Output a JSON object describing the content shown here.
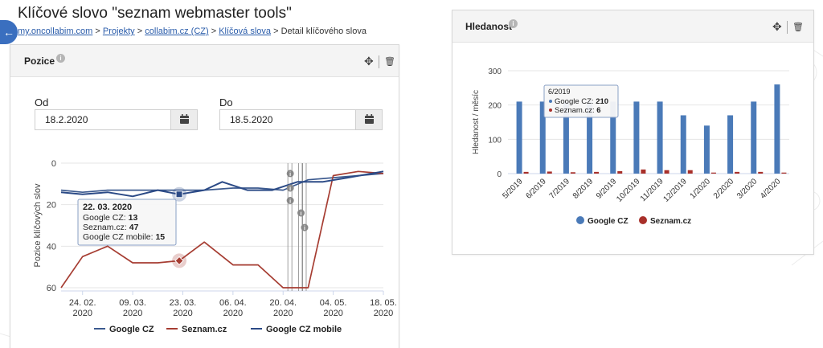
{
  "header": {
    "title": "Klíčové slovo \"seznam webmaster tools\"",
    "breadcrumb": {
      "links": [
        "my.oncollabim.com",
        "Projekty",
        "collabim.cz (CZ)",
        "Klíčová slova"
      ],
      "current": "Detail klíčového slova",
      "separator": ">"
    },
    "back_icon": "arrow-left-icon"
  },
  "position_panel": {
    "title": "Pozice",
    "from_label": "Od",
    "from_value": "18.2.2020",
    "to_label": "Do",
    "to_value": "18.5.2020",
    "icons": [
      "info-icon",
      "move-icon",
      "trash-icon",
      "calendar-icon"
    ]
  },
  "search_panel": {
    "title": "Hledanost",
    "icons": [
      "info-icon",
      "move-icon",
      "trash-icon"
    ]
  },
  "chart_data": [
    {
      "type": "line",
      "ylabel": "Pozice klíčových slov",
      "yticks": [
        "0",
        "20",
        "40",
        "60"
      ],
      "ylim": [
        60,
        0
      ],
      "y_reversed": true,
      "xticks": [
        {
          "label": [
            "24. 02.",
            "2020"
          ],
          "date": "2020-02-24"
        },
        {
          "label": [
            "09. 03.",
            "2020"
          ],
          "date": "2020-03-09"
        },
        {
          "label": [
            "23. 03.",
            "2020"
          ],
          "date": "2020-03-23"
        },
        {
          "label": [
            "06. 04.",
            "2020"
          ],
          "date": "2020-04-06"
        },
        {
          "label": [
            "20. 04.",
            "2020"
          ],
          "date": "2020-04-20"
        },
        {
          "label": [
            "04. 05.",
            "2020"
          ],
          "date": "2020-05-04"
        },
        {
          "label": [
            "18. 05.",
            "2020"
          ],
          "date": "2020-05-18"
        }
      ],
      "xlim": [
        "2020-02-18",
        "2020-05-18"
      ],
      "series": [
        {
          "name": "Google CZ",
          "color": "#3c5a8f",
          "points": [
            [
              "2020-02-18",
              13
            ],
            [
              "2020-02-24",
              14
            ],
            [
              "2020-03-02",
              13
            ],
            [
              "2020-03-09",
              13
            ],
            [
              "2020-03-16",
              13
            ],
            [
              "2020-03-22",
              13
            ],
            [
              "2020-03-29",
              13
            ],
            [
              "2020-04-06",
              12
            ],
            [
              "2020-04-13",
              12
            ],
            [
              "2020-04-20",
              13
            ],
            [
              "2020-04-27",
              8
            ],
            [
              "2020-05-04",
              7
            ],
            [
              "2020-05-11",
              6
            ],
            [
              "2020-05-18",
              5
            ]
          ]
        },
        {
          "name": "Seznam.cz",
          "color": "#a63d32",
          "points": [
            [
              "2020-02-18",
              60
            ],
            [
              "2020-02-24",
              45
            ],
            [
              "2020-03-02",
              40
            ],
            [
              "2020-03-09",
              48
            ],
            [
              "2020-03-16",
              48
            ],
            [
              "2020-03-22",
              47
            ],
            [
              "2020-03-29",
              38
            ],
            [
              "2020-04-06",
              49
            ],
            [
              "2020-04-13",
              49
            ],
            [
              "2020-04-20",
              60
            ],
            [
              "2020-04-27",
              60
            ],
            [
              "2020-05-04",
              6
            ],
            [
              "2020-05-11",
              4
            ],
            [
              "2020-05-18",
              5
            ]
          ]
        },
        {
          "name": "Google CZ mobile",
          "color": "#2b4a86",
          "points": [
            [
              "2020-02-18",
              14
            ],
            [
              "2020-02-24",
              15
            ],
            [
              "2020-03-02",
              14
            ],
            [
              "2020-03-09",
              16
            ],
            [
              "2020-03-16",
              13
            ],
            [
              "2020-03-22",
              15
            ],
            [
              "2020-03-29",
              13
            ],
            [
              "2020-04-03",
              9
            ],
            [
              "2020-04-10",
              13
            ],
            [
              "2020-04-17",
              13
            ],
            [
              "2020-04-24",
              9
            ],
            [
              "2020-05-01",
              9
            ],
            [
              "2020-05-08",
              7
            ],
            [
              "2020-05-18",
              4
            ]
          ]
        }
      ],
      "markers": [
        {
          "series": "Google CZ mobile",
          "date": "2020-03-22",
          "value": 15,
          "shape": "square"
        },
        {
          "series": "Seznam.cz",
          "date": "2020-03-22",
          "value": 47,
          "shape": "diamond"
        }
      ],
      "annotations": [
        {
          "date": "2020-04-22",
          "value": 5
        },
        {
          "date": "2020-04-22",
          "value": 12
        },
        {
          "date": "2020-04-22",
          "value": 18
        },
        {
          "date": "2020-04-25",
          "value": 24
        },
        {
          "date": "2020-04-26",
          "value": 31
        }
      ],
      "tooltip": {
        "title": "22. 03. 2020",
        "rows": [
          {
            "label": "Google CZ",
            "value": "13"
          },
          {
            "label": "Seznam.cz",
            "value": "47"
          },
          {
            "label": "Google CZ mobile",
            "value": "15"
          }
        ]
      },
      "legend": "bottom-center"
    },
    {
      "type": "bar",
      "ylabel": "Hledanost / měsíc",
      "yticks": [
        "0",
        "100",
        "200",
        "300"
      ],
      "ylim": [
        0,
        300
      ],
      "categories": [
        "5/2019",
        "6/2019",
        "7/2019",
        "8/2019",
        "9/2019",
        "10/2019",
        "11/2019",
        "12/2019",
        "1/2020",
        "2/2020",
        "3/2020",
        "4/2020"
      ],
      "series": [
        {
          "name": "Google CZ",
          "color": "#4a7ab8",
          "values": [
            210,
            210,
            210,
            210,
            210,
            210,
            210,
            170,
            140,
            170,
            210,
            260
          ]
        },
        {
          "name": "Seznam.cz",
          "color": "#a8302a",
          "values": [
            5,
            6,
            4,
            5,
            7,
            12,
            10,
            10,
            3,
            5,
            5,
            3
          ]
        }
      ],
      "tooltip": {
        "title": "6/2019",
        "rows": [
          {
            "label": "Google CZ",
            "value": "210"
          },
          {
            "label": "Seznam.cz",
            "value": "6"
          }
        ]
      },
      "legend": "bottom-center"
    }
  ]
}
